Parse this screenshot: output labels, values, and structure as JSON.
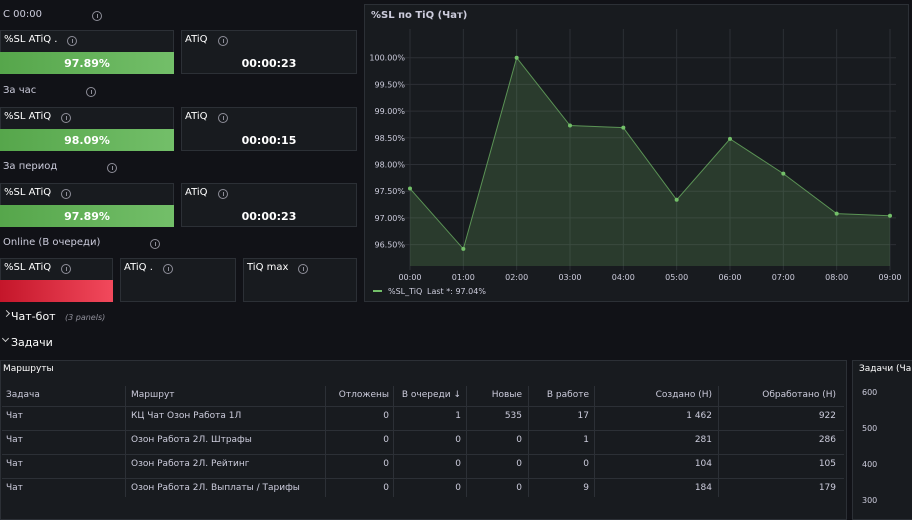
{
  "sections": [
    {
      "title": "С 00:00",
      "panels": [
        {
          "title": "%SL ATiQ .",
          "value": "97.89%"
        },
        {
          "title": "ATiQ",
          "value": "00:00:23"
        }
      ]
    },
    {
      "title": "За час",
      "panels": [
        {
          "title": "%SL ATiQ",
          "value": "98.09%"
        },
        {
          "title": "ATiQ",
          "value": "00:00:15"
        }
      ]
    },
    {
      "title": "За период",
      "panels": [
        {
          "title": "%SL ATiQ",
          "value": "97.89%"
        },
        {
          "title": "ATiQ",
          "value": "00:00:23"
        }
      ]
    },
    {
      "title": "Online (В очереди)",
      "panels": [
        {
          "title": "%SL ATiQ"
        },
        {
          "title": "ATiQ ."
        },
        {
          "title": "TiQ max"
        }
      ]
    }
  ],
  "chart_data": {
    "type": "line",
    "title": "%SL по TiQ (Чат)",
    "categories": [
      "00:00",
      "01:00",
      "02:00",
      "03:00",
      "04:00",
      "05:00",
      "06:00",
      "07:00",
      "08:00",
      "09:00"
    ],
    "series": [
      {
        "name": "%SL_TiQ",
        "color": "#73bf69",
        "values": [
          97.55,
          96.42,
          100.0,
          98.73,
          98.69,
          97.34,
          98.48,
          97.83,
          97.08,
          97.04
        ]
      }
    ],
    "ylim": [
      96.1,
      100.35
    ],
    "yticks": [
      {
        "value": 96.5,
        "label": "96.50%"
      },
      {
        "value": 97,
        "label": "97.00%"
      },
      {
        "value": 97.5,
        "label": "97.50%"
      },
      {
        "value": 98,
        "label": "98.00%"
      },
      {
        "value": 98.5,
        "label": "98.50%"
      },
      {
        "value": 99,
        "label": "99.00%"
      },
      {
        "value": 99.5,
        "label": "99.50%"
      },
      {
        "value": 100,
        "label": "100.00%"
      }
    ],
    "grid": true,
    "legend_value": "Last *: 97.04%"
  },
  "rows": [
    {
      "title": "Чат-бот",
      "note": "(3 panels)"
    },
    {
      "title": "Задачи"
    }
  ],
  "table": {
    "title": "Маршруты",
    "headers": [
      "Задача",
      "Маршрут",
      "Отложены",
      "В очереди ↓",
      "Новые",
      "В работе",
      "Создано (Н)",
      "Обработано (Н)"
    ],
    "rows": [
      [
        "Чат",
        "КЦ Чат Озон Работа 1Л",
        "0",
        "1",
        "535",
        "17",
        "1 462",
        "922"
      ],
      [
        "Чат",
        "Озон Работа 2Л. Штрафы",
        "0",
        "0",
        "0",
        "1",
        "281",
        "286"
      ],
      [
        "Чат",
        "Озон Работа 2Л. Рейтинг",
        "0",
        "0",
        "0",
        "0",
        "104",
        "105"
      ],
      [
        "Чат",
        "Озон Работа 2Л. Выплаты / Тарифы",
        "0",
        "0",
        "0",
        "9",
        "184",
        "179"
      ]
    ]
  },
  "side_panel": {
    "title": "Задачи (Ча",
    "yticks": [
      600,
      500,
      400,
      300
    ]
  }
}
